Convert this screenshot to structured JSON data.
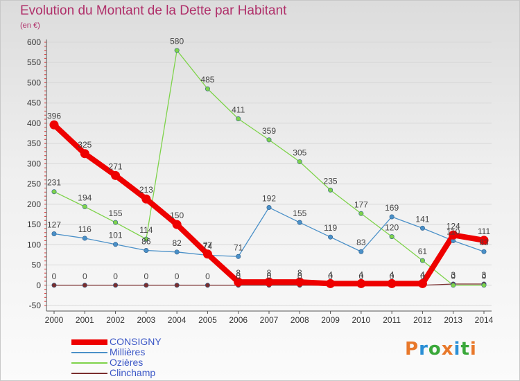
{
  "header": {
    "title": "Evolution du Montant de la Dette par Habitant",
    "subtitle": "(en €)"
  },
  "logo": {
    "text": "Proxiti",
    "colors": [
      "#e8782a",
      "#2a8fd6",
      "#3aa83a",
      "#e8782a",
      "#2a8fd6",
      "#3aa83a",
      "#e8782a"
    ]
  },
  "chart_data": {
    "type": "line",
    "x": [
      2000,
      2001,
      2002,
      2003,
      2004,
      2005,
      2006,
      2007,
      2008,
      2009,
      2010,
      2011,
      2012,
      2013,
      2014
    ],
    "ylim": [
      -50,
      600
    ],
    "yticks": [
      -50,
      0,
      50,
      100,
      150,
      200,
      250,
      300,
      350,
      400,
      450,
      500,
      550,
      600
    ],
    "title": "Evolution du Montant de la Dette par Habitant",
    "ylabel": "(en €)",
    "legend_position": "bottom-left",
    "series": [
      {
        "name": "CONSIGNY",
        "color": "#ee0000",
        "values": [
          396,
          325,
          271,
          213,
          150,
          77,
          8,
          8,
          8,
          4,
          4,
          4,
          4,
          124,
          111
        ],
        "labels": [
          "396",
          "325",
          "271",
          "213",
          "150",
          "77",
          "8",
          "8",
          "8",
          "4",
          "4",
          "4",
          "4",
          "124",
          "111"
        ]
      },
      {
        "name": "Millières",
        "color": "#4a90c8",
        "values": [
          127,
          116,
          101,
          86,
          82,
          74,
          71,
          192,
          155,
          119,
          83,
          169,
          141,
          110,
          83
        ],
        "labels": [
          "127",
          "116",
          "101",
          "86",
          "82",
          "74",
          "71",
          "192",
          "155",
          "119",
          "83",
          "169",
          "141",
          "110",
          "83"
        ]
      },
      {
        "name": "Ozières",
        "color": "#7ed34a",
        "values": [
          231,
          194,
          155,
          114,
          580,
          485,
          411,
          359,
          305,
          235,
          177,
          120,
          61,
          0,
          0
        ],
        "labels": [
          "231",
          "194",
          "155",
          "114",
          "580",
          "485",
          "411",
          "359",
          "305",
          "235",
          "177",
          "120",
          "61",
          "0",
          "0"
        ]
      },
      {
        "name": "Clinchamp",
        "color": "#7a2e2e",
        "values": [
          0,
          0,
          0,
          0,
          0,
          0,
          0,
          0,
          0,
          0,
          0,
          0,
          0,
          3,
          3
        ],
        "labels": [
          "0",
          "0",
          "0",
          "0",
          "0",
          "0",
          "0",
          "0",
          "0",
          "0",
          "0",
          "0",
          "0",
          "3",
          "3"
        ]
      }
    ]
  }
}
